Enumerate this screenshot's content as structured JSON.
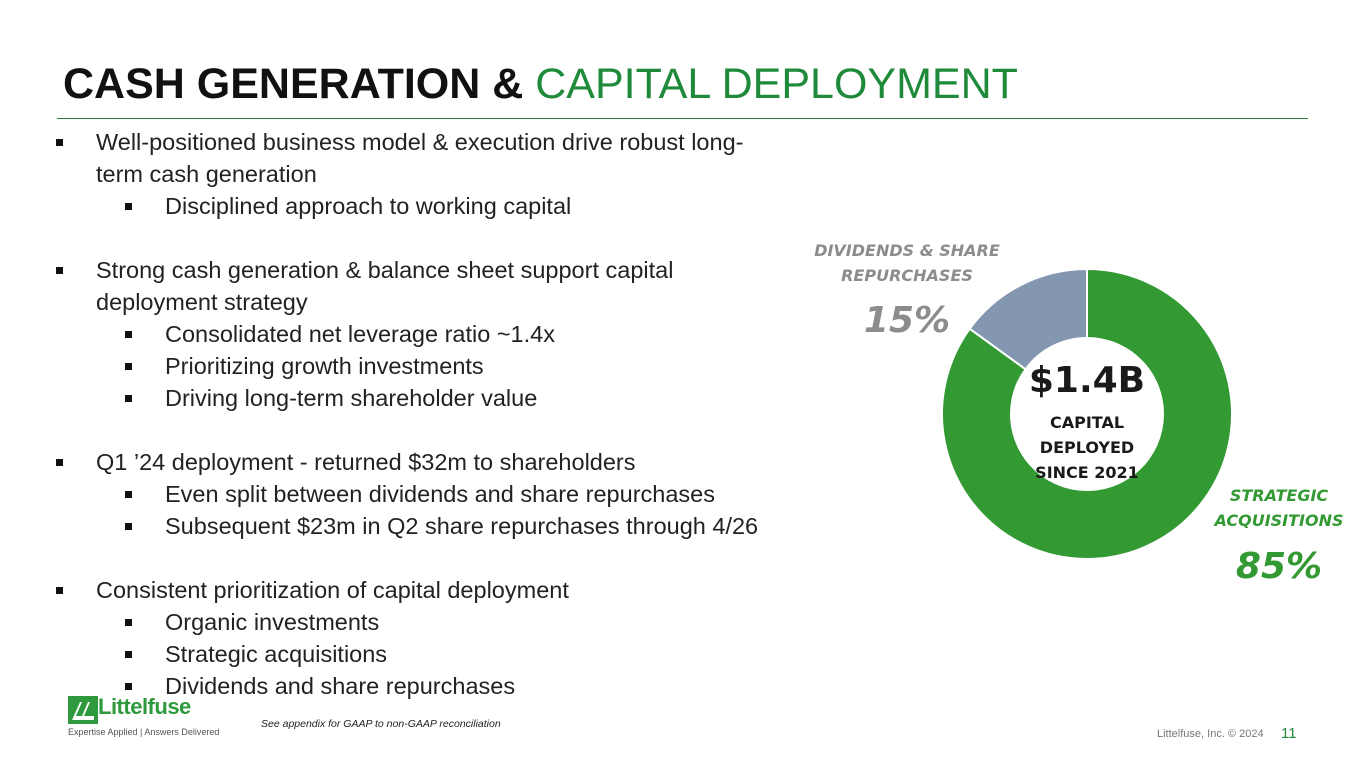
{
  "title": {
    "part1": "CASH GENERATION & ",
    "part2": "CAPITAL DEPLOYMENT"
  },
  "bullets": [
    {
      "level": 1,
      "text": "Well-positioned business model & execution drive robust long-"
    },
    {
      "level": 1,
      "cont": true,
      "text": "term cash generation"
    },
    {
      "level": 2,
      "text": "Disciplined approach to working capital"
    },
    {
      "level": 1,
      "text": "Strong cash generation & balance sheet support capital",
      "gap": true
    },
    {
      "level": 1,
      "cont": true,
      "text": "deployment strategy"
    },
    {
      "level": 2,
      "text": "Consolidated net leverage ratio ~1.4x"
    },
    {
      "level": 2,
      "text": "Prioritizing growth investments"
    },
    {
      "level": 2,
      "text": "Driving long-term shareholder value"
    },
    {
      "level": 1,
      "text": "Q1 ’24 deployment - returned $32m to shareholders",
      "gap": true
    },
    {
      "level": 2,
      "text": "Even split between dividends and share repurchases"
    },
    {
      "level": 2,
      "text": "Subsequent $23m in Q2 share repurchases through 4/26"
    },
    {
      "level": 1,
      "text": "Consistent prioritization of capital deployment",
      "gap": true
    },
    {
      "level": 2,
      "text": "Organic investments"
    },
    {
      "level": 2,
      "text": "Strategic acquisitions"
    },
    {
      "level": 2,
      "text": "Dividends and share repurchases"
    }
  ],
  "chart_data": {
    "type": "pie",
    "variant": "donut",
    "center_value": "$1.4B",
    "center_lines": [
      "CAPITAL",
      "DEPLOYED",
      "SINCE 2021"
    ],
    "slices": [
      {
        "label_lines": [
          "DIVIDENDS & SHARE",
          "REPURCHASES"
        ],
        "value": 15,
        "value_label": "15%",
        "color": "#8497b0",
        "label_color": "#8c8c8c"
      },
      {
        "label_lines": [
          "STRATEGIC",
          "ACQUISITIONS"
        ],
        "value": 85,
        "value_label": "85%",
        "color": "#339933",
        "label_color": "#339933"
      }
    ]
  },
  "footer": {
    "footnote": "See appendix for GAAP to non-GAAP reconciliation",
    "copyright": "Littelfuse, Inc. © 2024",
    "page_number": "11",
    "logo_text": "Littelfuse",
    "logo_tagline": "Expertise Applied | Answers Delivered"
  },
  "colors": {
    "accent": "#1e8a3a"
  }
}
